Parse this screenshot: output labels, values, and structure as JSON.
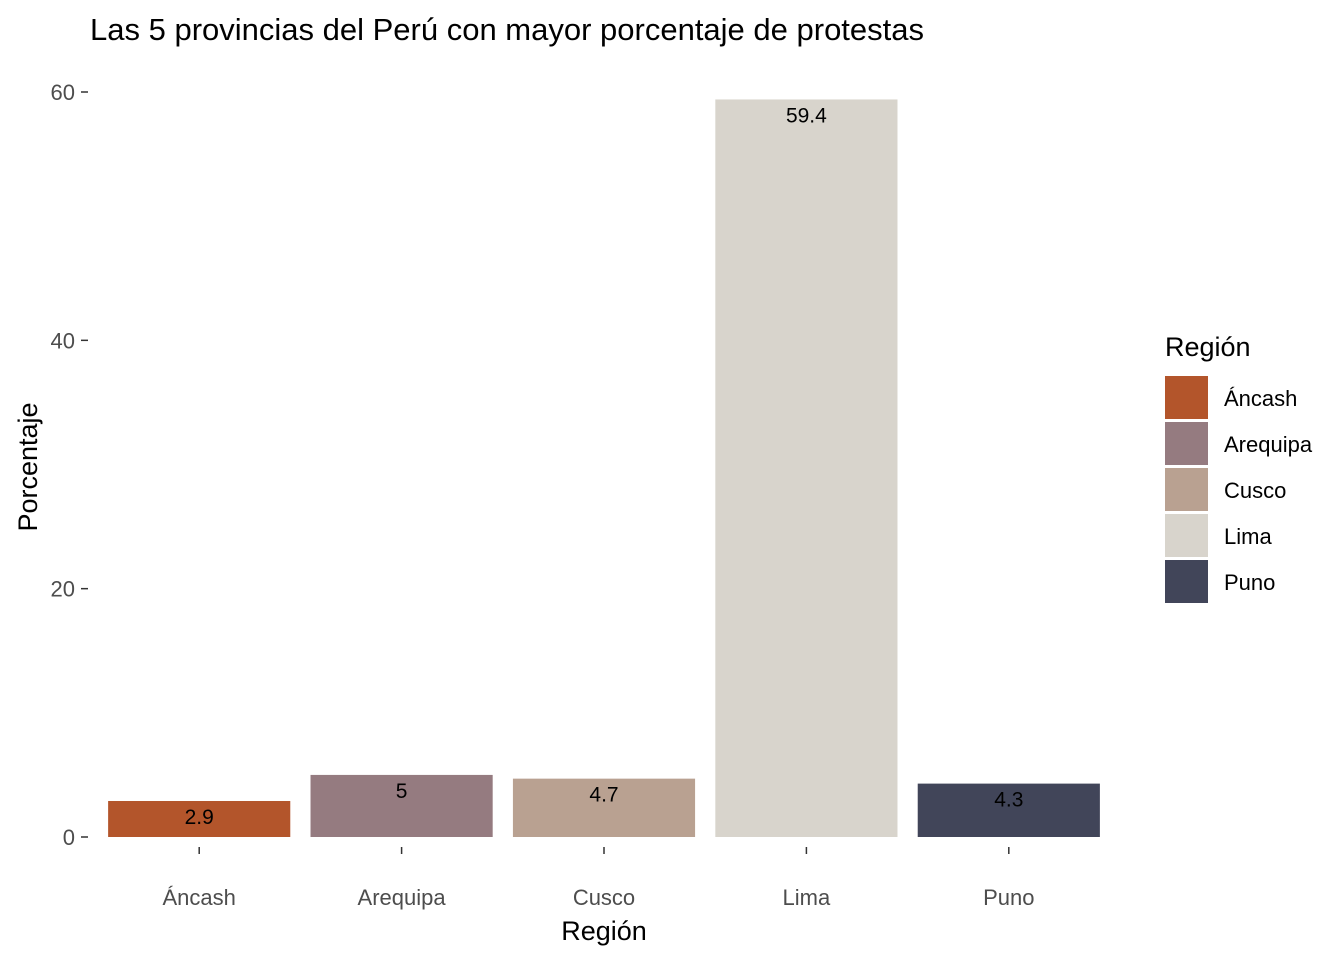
{
  "chart_data": {
    "type": "bar",
    "title": "Las 5 provincias del Perú con mayor porcentaje de protestas",
    "xlabel": "Región",
    "ylabel": "Porcentaje",
    "categories": [
      "Áncash",
      "Arequipa",
      "Cusco",
      "Lima",
      "Puno"
    ],
    "values": [
      2.9,
      5,
      4.7,
      59.4,
      4.3
    ],
    "data_labels": [
      "2.9",
      "5",
      "4.7",
      "59.4",
      "4.3"
    ],
    "colors": [
      "#b3552b",
      "#957b80",
      "#b9a191",
      "#d8d4cc",
      "#414559"
    ],
    "ylim": [
      0,
      60
    ],
    "yticks": [
      0,
      20,
      40,
      60
    ],
    "grid": false,
    "legend": {
      "title": "Región",
      "position": "right",
      "entries": [
        "Áncash",
        "Arequipa",
        "Cusco",
        "Lima",
        "Puno"
      ]
    }
  }
}
